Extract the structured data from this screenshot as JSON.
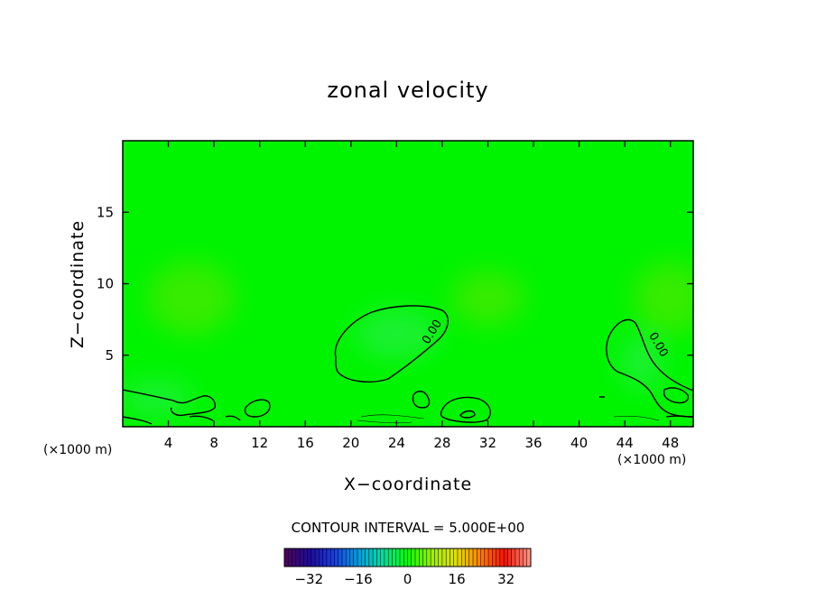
{
  "chart_data": {
    "type": "heatmap",
    "title": "zonal velocity",
    "xlabel": "X−coordinate",
    "ylabel": "Z−coordinate",
    "x_unit_label": "(×1000 m)",
    "xlim": [
      0,
      50
    ],
    "ylim": [
      0,
      20
    ],
    "x_ticks": [
      4,
      8,
      12,
      16,
      20,
      24,
      28,
      32,
      36,
      40,
      44,
      48
    ],
    "y_ticks": [
      5,
      10,
      15
    ],
    "contour_interval_text": "CONTOUR INTERVAL = 5.000E+00",
    "contour_labels": [
      "0.00",
      "0.00"
    ],
    "colorbar": {
      "range": [
        -40,
        40
      ],
      "ticks": [
        -32,
        -16,
        0,
        16,
        32
      ],
      "colors": [
        "#4b0060",
        "#1c0ca0",
        "#1a40e0",
        "#00a0e0",
        "#00e0a0",
        "#00ff00",
        "#a0f000",
        "#e0e000",
        "#ff8000",
        "#ff1000",
        "#ff9080"
      ]
    },
    "field_colors": {
      "background": "#00f400",
      "positive": "#46ea00",
      "negative": "#20f040"
    }
  }
}
